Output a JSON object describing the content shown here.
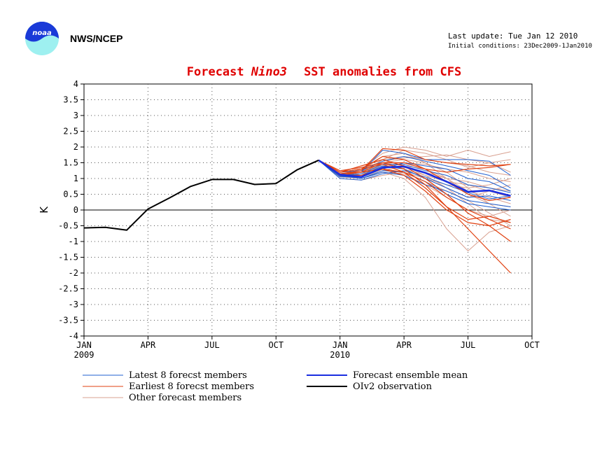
{
  "header": {
    "agency": "NWS/NCEP",
    "last_update": "Last update: Tue Jan 12 2010",
    "initial_conditions": "Initial conditions: 23Dec2009-1Jan2010",
    "logo_text": "noaa",
    "logo_icon": "noaa-logo-icon"
  },
  "colors": {
    "latest": "#1f5fd0",
    "earliest": "#e04010",
    "other": "#d8a090",
    "mean": "#1a2ee0",
    "obs": "#000000",
    "title": "#e00000"
  },
  "chart_data": {
    "type": "line",
    "title_prefix": "Forecast ",
    "title_italic": "Nino3",
    "title_suffix": "SST anomalies from CFS",
    "ylabel": "K",
    "xlabel": "",
    "ylim": [
      -4,
      4
    ],
    "xlim": [
      "2009-01",
      "2010-10"
    ],
    "yticks": [
      "-4",
      "-3.5",
      "-3",
      "-2.5",
      "-2",
      "-1.5",
      "-1",
      "-0.5",
      "0",
      "0.5",
      "1",
      "1.5",
      "2",
      "2.5",
      "3",
      "3.5",
      "4"
    ],
    "xticks": [
      {
        "month": "2009-01",
        "label": "JAN",
        "year": "2009"
      },
      {
        "month": "2009-04",
        "label": "APR",
        "year": ""
      },
      {
        "month": "2009-07",
        "label": "JUL",
        "year": ""
      },
      {
        "month": "2009-10",
        "label": "OCT",
        "year": ""
      },
      {
        "month": "2010-01",
        "label": "JAN",
        "year": "2010"
      },
      {
        "month": "2010-04",
        "label": "APR",
        "year": ""
      },
      {
        "month": "2010-07",
        "label": "JUL",
        "year": ""
      },
      {
        "month": "2010-10",
        "label": "OCT",
        "year": ""
      }
    ],
    "grid": true,
    "zero_line": true,
    "legend": [
      {
        "key": "latest",
        "label": "Latest 8 forecst members"
      },
      {
        "key": "earliest",
        "label": "Earliest 8 forecst members"
      },
      {
        "key": "other",
        "label": "Other forecast members"
      },
      {
        "key": "mean",
        "label": "Forecast ensemble mean"
      },
      {
        "key": "obs",
        "label": "OIv2 observation"
      }
    ],
    "observation": {
      "x": [
        "2009-01",
        "2009-02",
        "2009-03",
        "2009-04",
        "2009-05",
        "2009-06",
        "2009-07",
        "2009-08",
        "2009-09",
        "2009-10",
        "2009-11",
        "2009-12"
      ],
      "y": [
        -0.57,
        -0.55,
        -0.64,
        0.03,
        0.38,
        0.75,
        0.97,
        0.97,
        0.81,
        0.84,
        1.28,
        1.58
      ]
    },
    "ensemble_mean": {
      "x": [
        "2009-12",
        "2010-01",
        "2010-02",
        "2010-03",
        "2010-04",
        "2010-05",
        "2010-06",
        "2010-07",
        "2010-08",
        "2010-09"
      ],
      "y": [
        1.58,
        1.12,
        1.05,
        1.35,
        1.38,
        1.18,
        0.9,
        0.58,
        0.62,
        0.45
      ]
    },
    "members": {
      "x": [
        "2009-12",
        "2010-01",
        "2010-02",
        "2010-03",
        "2010-04",
        "2010-05",
        "2010-06",
        "2010-07",
        "2010-08",
        "2010-09"
      ],
      "latest": [
        [
          1.58,
          1.1,
          1.2,
          1.9,
          1.8,
          1.6,
          1.6,
          1.6,
          1.55,
          1.1
        ],
        [
          1.58,
          1.05,
          1.05,
          1.3,
          1.5,
          1.4,
          1.3,
          1.0,
          0.9,
          0.6
        ],
        [
          1.58,
          1.15,
          1.1,
          1.4,
          1.3,
          1.0,
          0.7,
          0.4,
          0.45,
          0.3
        ],
        [
          1.58,
          1.1,
          1.0,
          1.2,
          1.1,
          0.8,
          0.6,
          0.3,
          0.2,
          0.1
        ],
        [
          1.58,
          1.2,
          1.25,
          1.55,
          1.7,
          1.55,
          1.4,
          1.25,
          1.1,
          0.7
        ],
        [
          1.58,
          1.0,
          0.95,
          1.15,
          1.25,
          1.05,
          0.8,
          0.55,
          0.35,
          0.45
        ],
        [
          1.58,
          1.1,
          1.15,
          1.45,
          1.45,
          1.25,
          1.1,
          0.8,
          0.7,
          0.55
        ],
        [
          1.58,
          1.08,
          1.0,
          1.25,
          1.2,
          0.9,
          0.5,
          0.2,
          0.1,
          0.0
        ]
      ],
      "earliest": [
        [
          1.58,
          1.15,
          1.25,
          1.95,
          1.9,
          1.6,
          1.5,
          1.45,
          1.4,
          1.45
        ],
        [
          1.58,
          1.2,
          1.4,
          1.6,
          1.4,
          1.0,
          0.5,
          -0.1,
          -0.5,
          -1.0
        ],
        [
          1.58,
          1.1,
          1.2,
          1.5,
          1.3,
          0.8,
          0.1,
          -0.6,
          -1.3,
          -2.0
        ],
        [
          1.58,
          1.2,
          1.3,
          1.45,
          1.2,
          0.9,
          0.4,
          0.0,
          -0.3,
          -0.6
        ],
        [
          1.58,
          1.1,
          1.1,
          1.3,
          1.2,
          0.7,
          0.1,
          -0.3,
          -0.2,
          -0.4
        ],
        [
          1.58,
          1.25,
          1.35,
          1.5,
          1.5,
          1.3,
          1.2,
          1.3,
          1.35,
          1.45
        ],
        [
          1.58,
          1.15,
          1.2,
          1.3,
          1.1,
          0.6,
          0.0,
          -0.4,
          -0.5,
          -0.3
        ],
        [
          1.58,
          1.2,
          1.3,
          1.7,
          1.6,
          1.3,
          0.9,
          0.5,
          0.3,
          0.4
        ]
      ],
      "other": [
        [
          1.58,
          1.1,
          1.3,
          1.8,
          2.0,
          1.9,
          1.7,
          1.9,
          1.7,
          1.85
        ],
        [
          1.58,
          1.05,
          1.1,
          1.5,
          1.6,
          1.5,
          1.2,
          0.7,
          0.2,
          -0.2
        ],
        [
          1.58,
          1.1,
          1.0,
          1.2,
          1.0,
          0.4,
          -0.6,
          -1.3,
          -0.7,
          -0.5
        ],
        [
          1.58,
          1.15,
          1.2,
          1.6,
          1.7,
          1.6,
          1.5,
          1.4,
          1.2,
          1.1
        ],
        [
          1.58,
          1.05,
          1.15,
          1.4,
          1.3,
          1.1,
          0.9,
          0.8,
          0.6,
          0.4
        ],
        [
          1.58,
          1.1,
          1.25,
          1.7,
          1.8,
          1.5,
          1.0,
          0.5,
          0.2,
          0.1
        ],
        [
          1.58,
          1.0,
          0.95,
          1.1,
          1.2,
          1.0,
          0.8,
          0.7,
          0.8,
          1.0
        ],
        [
          1.58,
          1.2,
          1.3,
          1.55,
          1.65,
          1.7,
          1.75,
          1.6,
          1.5,
          1.2
        ],
        [
          1.58,
          1.1,
          1.1,
          1.3,
          1.2,
          0.9,
          0.6,
          0.3,
          -0.1,
          -0.5
        ],
        [
          1.58,
          1.15,
          1.2,
          1.45,
          1.35,
          1.2,
          1.0,
          0.9,
          0.7,
          0.6
        ],
        [
          1.58,
          1.05,
          1.05,
          1.25,
          1.4,
          1.3,
          1.0,
          0.6,
          0.4,
          0.2
        ],
        [
          1.58,
          1.1,
          1.15,
          1.35,
          1.5,
          1.45,
          1.3,
          1.2,
          1.0,
          0.9
        ],
        [
          1.58,
          1.2,
          1.25,
          1.5,
          1.4,
          1.1,
          0.7,
          0.2,
          -0.3,
          -0.4
        ],
        [
          1.58,
          1.1,
          1.2,
          1.6,
          1.9,
          1.8,
          1.6,
          1.35,
          1.5,
          1.6
        ],
        [
          1.58,
          1.05,
          1.0,
          1.2,
          1.15,
          0.8,
          0.4,
          0.0,
          -0.2,
          0.0
        ],
        [
          1.58,
          1.15,
          1.2,
          1.4,
          1.3,
          1.0,
          0.7,
          0.4,
          0.6,
          0.8
        ]
      ]
    }
  }
}
